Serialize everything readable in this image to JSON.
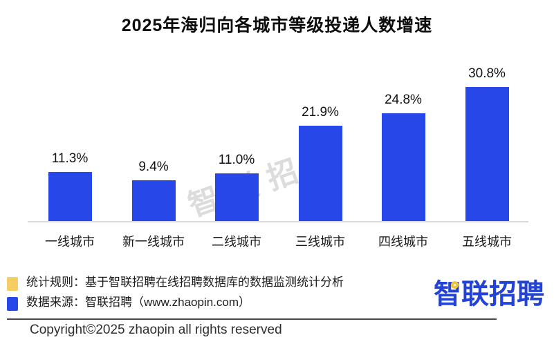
{
  "chart_data": {
    "type": "bar",
    "title": "2025年海归向各城市等级投递人数增速",
    "categories": [
      "一线城市",
      "新一线城市",
      "二线城市",
      "三线城市",
      "四线城市",
      "五线城市"
    ],
    "values": [
      11.3,
      9.4,
      11.0,
      21.9,
      24.8,
      30.8
    ],
    "value_labels": [
      "11.3%",
      "9.4%",
      "11.0%",
      "21.9%",
      "24.8%",
      "30.8%"
    ],
    "unit": "%",
    "ylim": [
      0,
      33
    ],
    "grid": false,
    "legend_position": "none",
    "bar_color": "#2747e9",
    "axis_line_color": "#dadada"
  },
  "watermark": "智联招聘",
  "notes": [
    {
      "swatch_color": "#f6cd63",
      "text": "统计规则：基于智联招聘在线招聘数据库的数据监测统计分析"
    },
    {
      "swatch_color": "#2747e9",
      "text": "数据来源：智联招聘（www.zhaopin.com）"
    }
  ],
  "footer": {
    "copyright": "Copyright©2025 zhaopin all rights reserved"
  },
  "logo": {
    "text": "智联招聘",
    "color": "#2343d6",
    "accent_color": "#f0c53c"
  }
}
